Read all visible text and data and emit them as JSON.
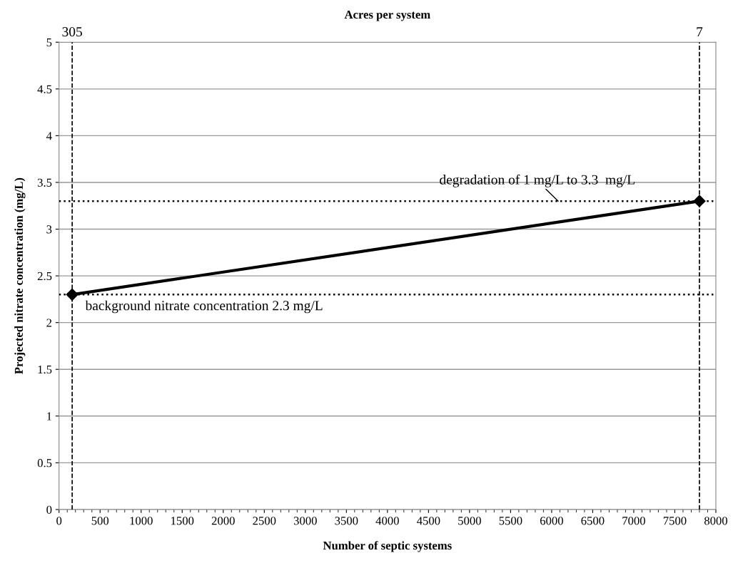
{
  "chart_data": {
    "type": "line",
    "title": "Acres per system",
    "annotations": [
      {
        "text": "305",
        "x": 160,
        "y": 5
      },
      {
        "text": "7",
        "x": 7800,
        "y": 5
      }
    ],
    "xlabel": "Number of septic systems",
    "ylabel": "Projected nitrate concentration (mg/L)",
    "x": [
      160,
      7800
    ],
    "series": [
      {
        "color": "#000000",
        "values": [
          2.3,
          3.3
        ]
      }
    ],
    "marker": "diamond",
    "line_style": "solid",
    "xlim": [
      0,
      8000
    ],
    "xticks": [
      0,
      500,
      1000,
      1500,
      2000,
      2500,
      3000,
      3500,
      4000,
      4500,
      5000,
      5500,
      6000,
      6500,
      7000,
      7500,
      8000
    ],
    "ylim": [
      0,
      5
    ],
    "yticks": [
      0,
      0.5,
      1,
      1.5,
      2,
      2.5,
      3,
      3.5,
      4,
      4.5,
      5
    ],
    "grid": "y",
    "legend": false,
    "ref_lines": [
      {
        "axis": "x",
        "value": 160,
        "line_style": "dashed",
        "color": "#000000"
      },
      {
        "axis": "x",
        "value": 7800,
        "line_style": "dashed",
        "color": "#000000"
      },
      {
        "axis": "y",
        "value": 2.3,
        "label": "background nitrate concentration 2.3 mg/L",
        "line_style": "dotted",
        "color": "#000000"
      },
      {
        "axis": "y",
        "value": 3.3,
        "label": "degradation of 1 mg/L to 3.3  mg/L",
        "line_style": "dotted",
        "color": "#000000"
      }
    ]
  }
}
